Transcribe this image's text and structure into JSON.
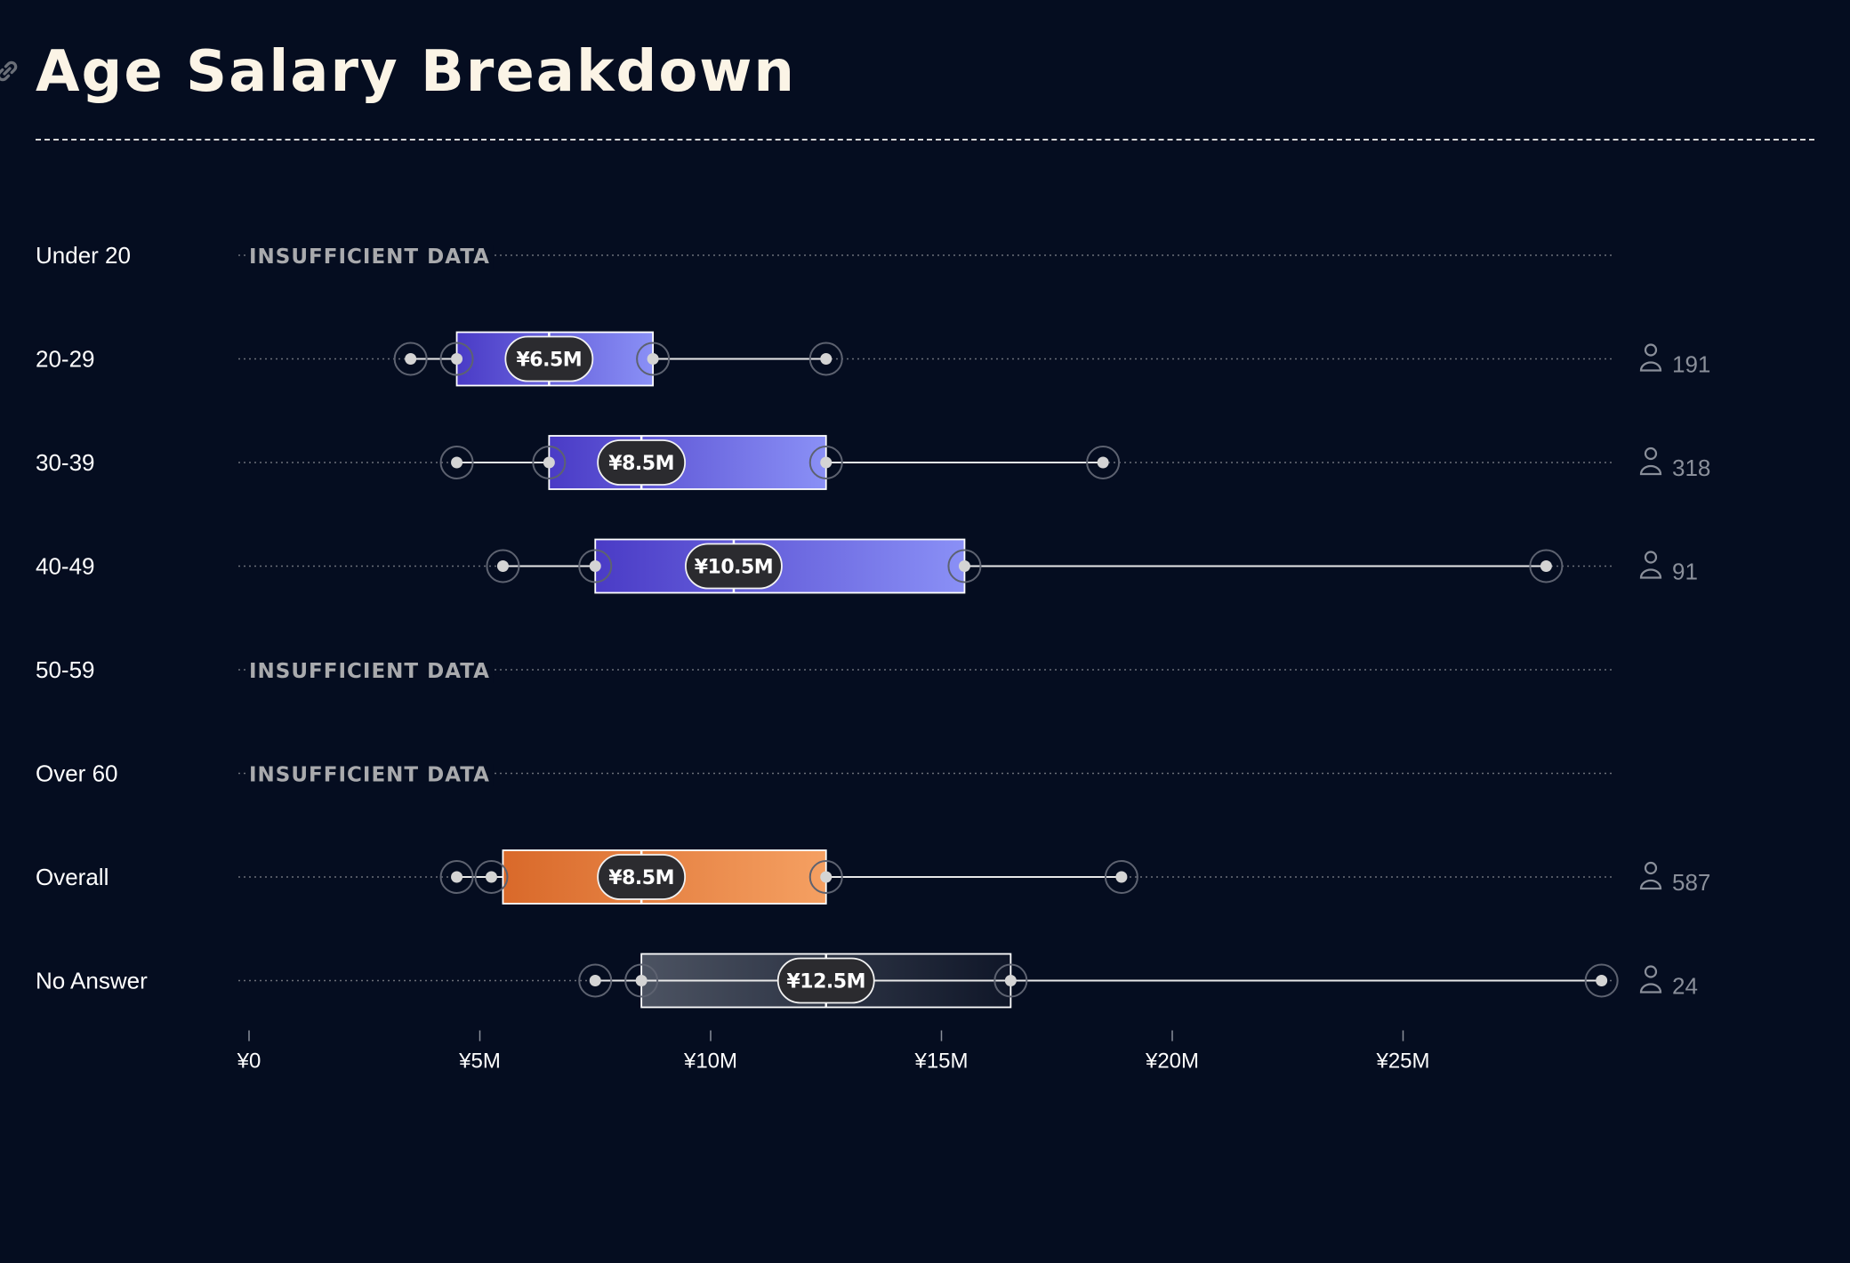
{
  "page": {
    "title": "Age Salary Breakdown"
  },
  "chart_data": {
    "type": "boxplot",
    "orientation": "horizontal",
    "title": "Age Salary Breakdown",
    "x_axis": {
      "range": [
        0,
        29.5
      ],
      "ticks": [
        0,
        5,
        10,
        15,
        20,
        25
      ],
      "tick_labels": [
        "¥0",
        "¥5M",
        "¥10M",
        "¥15M",
        "¥20M",
        "¥25M"
      ],
      "unit": "¥M"
    },
    "insufficient_label": "INSUFFICIENT DATA",
    "colors": {
      "age_gradient": [
        "#4a3bc6",
        "#8a90f6"
      ],
      "overall_gradient": [
        "#d9692a",
        "#f5a062"
      ],
      "no_answer_gradient": [
        "#4c5362",
        "#0f1628"
      ],
      "background": "#050d20",
      "title": "#fbf4e6"
    },
    "rows": [
      {
        "label": "Under 20",
        "insufficient": true
      },
      {
        "label": "20-29",
        "min": 3.5,
        "whisker_low": 4.5,
        "q1": 4.5,
        "median": 6.5,
        "q3": 8.75,
        "whisker_high": 8.75,
        "max": 12.5,
        "median_label": "¥6.5M",
        "count": "191",
        "style": "age"
      },
      {
        "label": "30-39",
        "min": 4.5,
        "whisker_low": 6.5,
        "q1": 6.5,
        "median": 8.5,
        "q3": 12.5,
        "whisker_high": 12.5,
        "max": 18.5,
        "median_label": "¥8.5M",
        "count": "318",
        "style": "age"
      },
      {
        "label": "40-49",
        "min": 5.5,
        "whisker_low": 7.5,
        "q1": 7.5,
        "median": 10.5,
        "q3": 15.5,
        "whisker_high": 15.5,
        "max": 28.1,
        "median_label": "¥10.5M",
        "count": "91",
        "style": "age"
      },
      {
        "label": "50-59",
        "insufficient": true
      },
      {
        "label": "Over 60",
        "insufficient": true
      },
      {
        "label": "Overall",
        "min": 4.5,
        "whisker_low": 5.25,
        "q1": 5.5,
        "median": 8.5,
        "q3": 12.5,
        "whisker_high": 12.5,
        "max": 18.9,
        "median_label": "¥8.5M",
        "count": "587",
        "style": "overall"
      },
      {
        "label": "No Answer",
        "min": 7.5,
        "whisker_low": 8.5,
        "q1": 8.5,
        "median": 12.5,
        "q3": 16.5,
        "whisker_high": 16.5,
        "max": 29.3,
        "median_label": "¥12.5M",
        "count": "24",
        "style": "no_answer"
      }
    ]
  }
}
